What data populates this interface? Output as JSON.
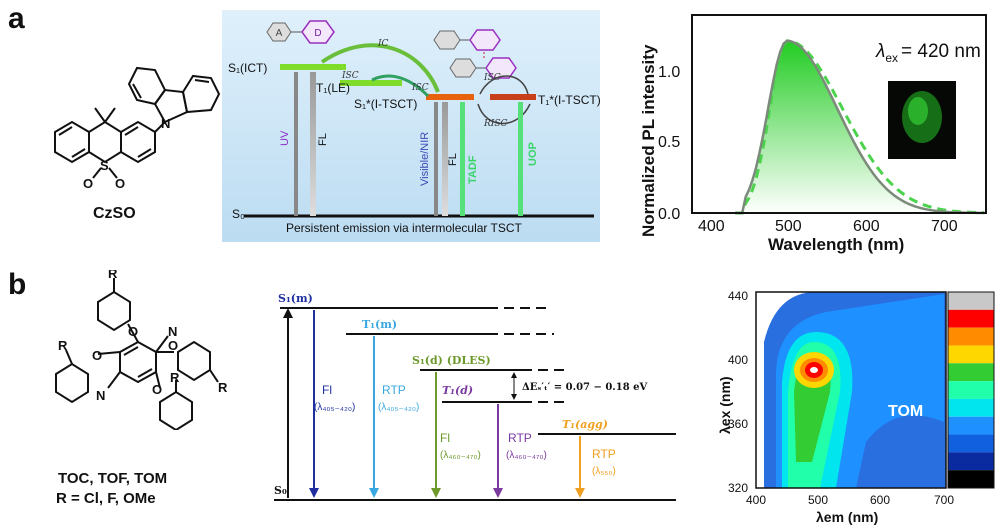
{
  "panel_a": {
    "label": "a",
    "molecule_name": "CzSO",
    "molecule_atoms": {
      "s": "S",
      "o1": "O",
      "o2": "O",
      "n": "N"
    },
    "donor_acceptor": {
      "acceptor": "A",
      "donor": "D"
    },
    "levels": {
      "s1_ict": "S₁(ICT)",
      "t1_le": "T₁(LE)",
      "s1_itsct": "S₁*(I-TSCT)",
      "t1_itsct": "T₁*(I-TSCT)",
      "s0": "S₀"
    },
    "processes": {
      "ic": "IC",
      "isc1": "ISC",
      "isc2": "ISC",
      "risc": "RISC",
      "uv": "UV",
      "fl1": "FL",
      "vis_nir": "Visible/NIR",
      "fl2": "FL",
      "tadf": "TADF",
      "uop": "UOP"
    },
    "caption": "Persistent emission via intermolecular TSCT",
    "spectrum": {
      "ylabel": "Normalized PL intensity",
      "xlabel": "Wavelength (nm)",
      "lambda_ex": "= 420 nm",
      "lambda_sym": "λ",
      "lambda_sub": "ex",
      "x_ticks": [
        "400",
        "500",
        "600",
        "700"
      ],
      "y_ticks": [
        "0.0",
        "0.5",
        "1.0"
      ],
      "colors": {
        "solid": "#7b8a7b",
        "dashed": "#4cd34c",
        "fill": "#33dd33"
      }
    }
  },
  "panel_b": {
    "label": "b",
    "molecule_names": "TOC, TOF, TOM",
    "molecule_r": "R = Cl, F, OMe",
    "molecule_atoms": {
      "r1": "R",
      "r2": "R",
      "r3": "R",
      "r4": "R",
      "n1": "N",
      "n2": "N",
      "o1": "O",
      "o2": "O",
      "o3": "O",
      "o4": "O"
    },
    "levels": {
      "s1m": "S₁(m)",
      "t1m": "T₁(m)",
      "s1d": "S₁(d) (DLES)",
      "t1d": "T₁(d)",
      "t1agg": "T₁(agg)",
      "s0": "S₀",
      "gap": "ΔEₛ′ₜ′ = 0.07 − 0.18 eV"
    },
    "transitions": [
      {
        "name": "Fl",
        "range": "(λ₄₀₅₋₄₂₀)",
        "color": "#1f2fa0"
      },
      {
        "name": "RTP",
        "range": "(λ₄₀₅₋₄₂₀)",
        "color": "#3aa8e0"
      },
      {
        "name": "Fl",
        "range": "(λ₄₆₀₋₄₇₀)",
        "color": "#6d9a2a"
      },
      {
        "name": "RTP",
        "range": "(λ₄₆₀₋₄₇₀)",
        "color": "#7a3aa0"
      },
      {
        "name": "RTP",
        "range": "(λ₅₅₀)",
        "color": "#f0a020"
      }
    ],
    "map": {
      "label": "TOM",
      "ylabel": "λex (nm)",
      "xlabel": "λem (nm)",
      "x_ticks": [
        "400",
        "500",
        "600",
        "700"
      ],
      "y_ticks": [
        "320",
        "360",
        "400",
        "440"
      ],
      "colorbar": [
        "#c8c8c8",
        "#ff0000",
        "#ff8c00",
        "#ffd700",
        "#33cc33",
        "#22ffaa",
        "#00e5ee",
        "#1e90ff",
        "#1060e0",
        "#0a2aa0",
        "#000000"
      ]
    }
  }
}
